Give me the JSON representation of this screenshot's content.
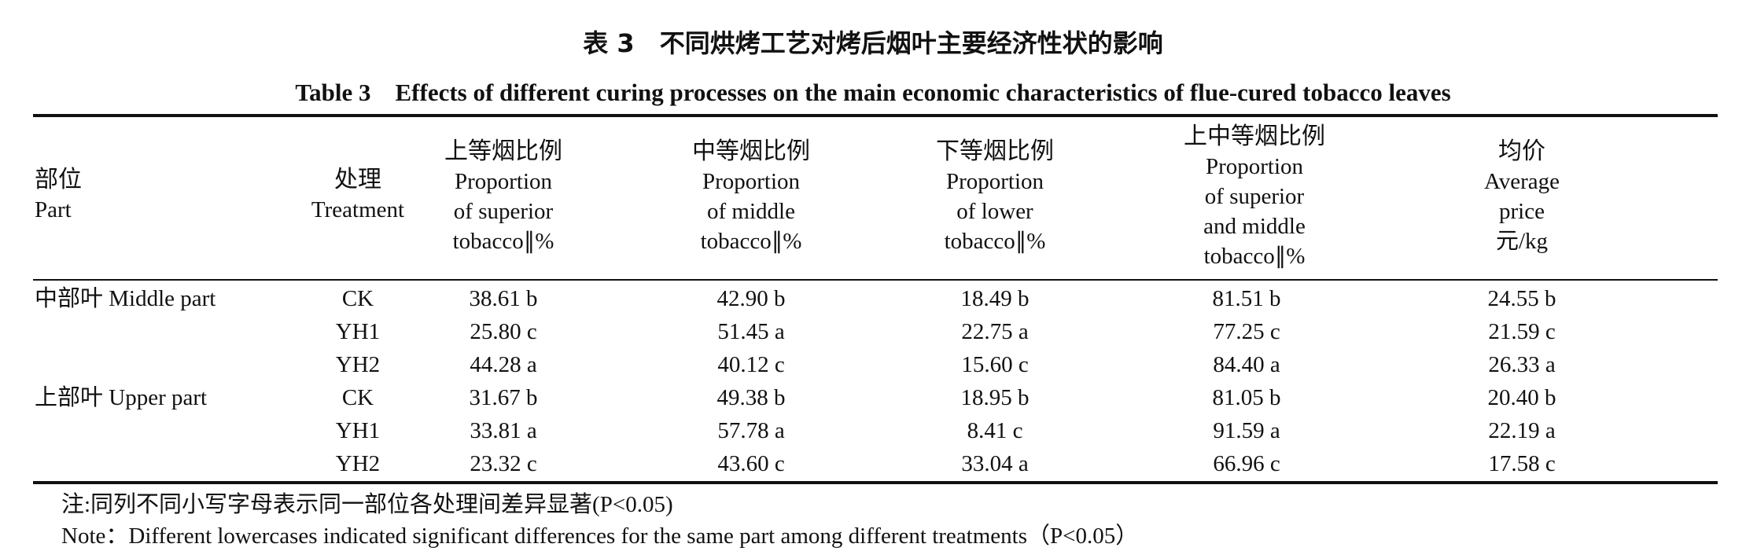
{
  "title_cn": "表 3　不同烘烤工艺对烤后烟叶主要经济性状的影响",
  "title_en": "Table 3　Effects of different curing processes on the main economic characteristics of flue-cured tobacco leaves",
  "headers": {
    "part": {
      "cn": "部位",
      "en": "Part"
    },
    "treatment": {
      "cn": "处理",
      "en": "Treatment"
    },
    "superior": {
      "cn": "上等烟比例",
      "l1": "Proportion",
      "l2": "of superior",
      "l3": "tobacco∥%"
    },
    "middle": {
      "cn": "中等烟比例",
      "l1": "Proportion",
      "l2": "of middle",
      "l3": "tobacco∥%"
    },
    "lower": {
      "cn": "下等烟比例",
      "l1": "Proportion",
      "l2": "of lower",
      "l3": "tobacco∥%"
    },
    "sup_mid": {
      "cn": "上中等烟比例",
      "l1": "Proportion",
      "l2": "of superior",
      "l3": "and middle",
      "l4": "tobacco∥%"
    },
    "price": {
      "cn": "均价",
      "l1": "Average",
      "l2": "price",
      "l3": "元/kg"
    }
  },
  "rows": [
    {
      "part": "中部叶 Middle part",
      "treatment": "CK",
      "superior": "38.61 b",
      "middle": "42.90 b",
      "lower": "18.49 b",
      "sup_mid": "81.51 b",
      "price": "24.55 b"
    },
    {
      "part": "",
      "treatment": "YH1",
      "superior": "25.80 c",
      "middle": "51.45 a",
      "lower": "22.75 a",
      "sup_mid": "77.25 c",
      "price": "21.59 c"
    },
    {
      "part": "",
      "treatment": "YH2",
      "superior": "44.28 a",
      "middle": "40.12 c",
      "lower": "15.60 c",
      "sup_mid": "84.40 a",
      "price": "26.33 a"
    },
    {
      "part": "上部叶 Upper part",
      "treatment": "CK",
      "superior": "31.67 b",
      "middle": "49.38 b",
      "lower": "18.95 b",
      "sup_mid": "81.05 b",
      "price": "20.40 b"
    },
    {
      "part": "",
      "treatment": "YH1",
      "superior": "33.81 a",
      "middle": "57.78 a",
      "lower": "8.41 c",
      "sup_mid": "91.59 a",
      "price": "22.19 a"
    },
    {
      "part": "",
      "treatment": "YH2",
      "superior": "23.32 c",
      "middle": "43.60 c",
      "lower": "33.04 a",
      "sup_mid": "66.96 c",
      "price": "17.58 c"
    }
  ],
  "note_cn": "注:同列不同小写字母表示同一部位各处理间差异显著(P<0.05)",
  "note_en": "Note：Different lowercases indicated significant differences for the same part among different treatments（P<0.05）"
}
